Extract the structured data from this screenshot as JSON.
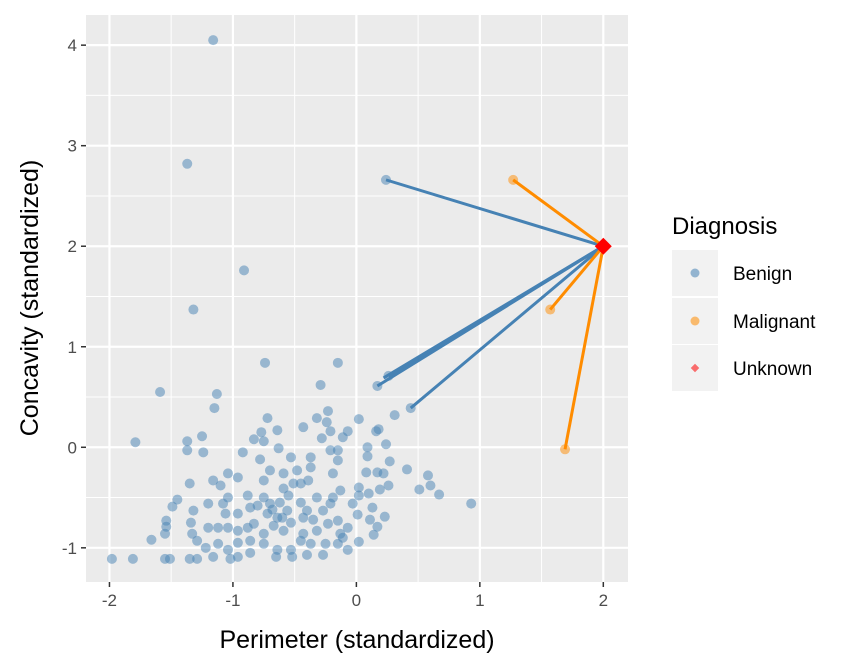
{
  "chart_data": {
    "type": "scatter",
    "xlabel": "Perimeter (standardized)",
    "ylabel": "Concavity (standardized)",
    "xlim": [
      -2.19,
      2.2
    ],
    "ylim": [
      -1.34,
      4.3
    ],
    "xticks": [
      -2,
      -1,
      0,
      1,
      2
    ],
    "xtick_labels": [
      "-2",
      "-1",
      "0",
      "1",
      "2"
    ],
    "yticks": [
      -1,
      0,
      1,
      2,
      3,
      4
    ],
    "ytick_labels": [
      "-1",
      "0",
      "1",
      "2",
      "3",
      "4"
    ],
    "grid": true,
    "legend": {
      "title": "Diagnosis",
      "placement": "right",
      "entries": [
        "Benign",
        "Malignant",
        "Unknown"
      ]
    },
    "colors": {
      "Benign": "#4682B4",
      "Malignant": "#FF8C00",
      "Unknown": "#FF0000",
      "panel": "#EBEBEB"
    },
    "series": [
      {
        "name": "Benign",
        "points": [
          [
            -1.98,
            -1.11
          ],
          [
            -1.81,
            -1.11
          ],
          [
            -1.55,
            -1.11
          ],
          [
            -1.51,
            -1.11
          ],
          [
            -1.35,
            -1.11
          ],
          [
            -1.29,
            -1.11
          ],
          [
            -1.16,
            -1.09
          ],
          [
            -1.02,
            -1.11
          ],
          [
            -0.96,
            -1.09
          ],
          [
            -0.86,
            -1.05
          ],
          [
            -0.65,
            -1.09
          ],
          [
            -0.52,
            -1.09
          ],
          [
            -0.4,
            -1.07
          ],
          [
            -0.27,
            -1.07
          ],
          [
            -1.66,
            -0.92
          ],
          [
            -1.55,
            -0.86
          ],
          [
            -1.54,
            -0.79
          ],
          [
            -1.54,
            -0.73
          ],
          [
            -1.49,
            -0.59
          ],
          [
            -1.45,
            -0.52
          ],
          [
            -1.35,
            -0.36
          ],
          [
            -1.37,
            -0.03
          ],
          [
            -1.37,
            0.06
          ],
          [
            -1.25,
            0.11
          ],
          [
            -1.24,
            -0.05
          ],
          [
            -0.92,
            -0.05
          ],
          [
            -0.83,
            0.08
          ],
          [
            -0.77,
            0.15
          ],
          [
            -0.72,
            0.29
          ],
          [
            -0.64,
            0.17
          ],
          [
            -0.75,
            0.06
          ],
          [
            -0.63,
            -0.01
          ],
          [
            -0.78,
            -0.12
          ],
          [
            -0.53,
            -0.1
          ],
          [
            -0.43,
            0.2
          ],
          [
            -0.32,
            0.29
          ],
          [
            -0.23,
            0.36
          ],
          [
            -0.24,
            0.25
          ],
          [
            -0.21,
            0.16
          ],
          [
            -0.28,
            0.09
          ],
          [
            -0.11,
            0.1
          ],
          [
            -0.07,
            0.16
          ],
          [
            0.02,
            0.28
          ],
          [
            0.16,
            0.16
          ],
          [
            0.18,
            0.18
          ],
          [
            0.31,
            0.32
          ],
          [
            0.24,
            0.03
          ],
          [
            0.09,
            0.0
          ],
          [
            0.09,
            -0.09
          ],
          [
            0.27,
            -0.14
          ],
          [
            0.41,
            -0.22
          ],
          [
            0.58,
            -0.28
          ],
          [
            0.6,
            -0.38
          ],
          [
            0.51,
            -0.42
          ],
          [
            0.67,
            -0.47
          ],
          [
            0.93,
            -0.56
          ],
          [
            0.17,
            -0.25
          ],
          [
            0.22,
            -0.26
          ],
          [
            0.08,
            -0.25
          ],
          [
            0.26,
            -0.38
          ],
          [
            0.19,
            -0.42
          ],
          [
            0.02,
            -0.4
          ],
          [
            0.02,
            -0.48
          ],
          [
            0.1,
            -0.46
          ],
          [
            0.13,
            -0.6
          ],
          [
            0.23,
            -0.69
          ],
          [
            0.17,
            -0.79
          ],
          [
            0.14,
            -0.87
          ],
          [
            0.02,
            -0.94
          ],
          [
            0.11,
            -0.72
          ],
          [
            0.01,
            -0.67
          ],
          [
            -0.03,
            -0.56
          ],
          [
            -0.07,
            -0.8
          ],
          [
            -0.07,
            -1.02
          ],
          [
            -0.15,
            -0.96
          ],
          [
            -0.25,
            -0.96
          ],
          [
            -0.37,
            -0.96
          ],
          [
            -0.45,
            -0.93
          ],
          [
            -0.53,
            -1.02
          ],
          [
            -0.64,
            -1.02
          ],
          [
            -0.75,
            -0.96
          ],
          [
            -0.86,
            -0.93
          ],
          [
            -0.96,
            -0.95
          ],
          [
            -1.04,
            -1.02
          ],
          [
            -1.12,
            -0.96
          ],
          [
            -1.22,
            -1.0
          ],
          [
            -1.29,
            -0.93
          ],
          [
            -1.33,
            -0.86
          ],
          [
            -1.34,
            -0.75
          ],
          [
            -1.32,
            -0.63
          ],
          [
            -1.2,
            -0.56
          ],
          [
            -1.08,
            -0.56
          ],
          [
            -1.04,
            -0.5
          ],
          [
            -1.06,
            -0.66
          ],
          [
            -0.96,
            -0.66
          ],
          [
            -0.88,
            -0.48
          ],
          [
            -0.86,
            -0.6
          ],
          [
            -0.83,
            -0.76
          ],
          [
            -0.88,
            -0.8
          ],
          [
            -0.96,
            -0.83
          ],
          [
            -1.04,
            -0.8
          ],
          [
            -1.12,
            -0.8
          ],
          [
            -1.2,
            -0.8
          ],
          [
            -0.75,
            -0.86
          ],
          [
            -0.67,
            -0.78
          ],
          [
            -0.59,
            -0.83
          ],
          [
            -0.53,
            -0.75
          ],
          [
            -0.72,
            -0.66
          ],
          [
            -0.64,
            -0.7
          ],
          [
            -0.56,
            -0.63
          ],
          [
            -0.7,
            -0.56
          ],
          [
            -0.75,
            -0.5
          ],
          [
            -0.59,
            -0.41
          ],
          [
            -0.51,
            -0.36
          ],
          [
            -0.45,
            -0.36
          ],
          [
            -0.39,
            -0.33
          ],
          [
            -0.37,
            -0.2
          ],
          [
            -0.48,
            -0.23
          ],
          [
            -0.59,
            -0.26
          ],
          [
            -0.7,
            -0.23
          ],
          [
            -0.75,
            -0.33
          ],
          [
            -1.16,
            -0.33
          ],
          [
            -1.1,
            -0.38
          ],
          [
            -1.04,
            -0.26
          ],
          [
            -0.96,
            -0.3
          ],
          [
            -0.4,
            -0.63
          ],
          [
            -0.32,
            -0.5
          ],
          [
            -0.27,
            -0.63
          ],
          [
            -0.21,
            -0.56
          ],
          [
            -0.19,
            -0.5
          ],
          [
            -0.13,
            -0.43
          ],
          [
            -0.19,
            -0.26
          ],
          [
            -0.15,
            -0.13
          ],
          [
            -0.21,
            -0.03
          ],
          [
            -0.15,
            -0.03
          ],
          [
            -0.43,
            -0.7
          ],
          [
            -0.43,
            -0.86
          ],
          [
            -0.32,
            -0.83
          ],
          [
            -0.23,
            -0.76
          ],
          [
            -0.15,
            -0.73
          ],
          [
            -0.13,
            -0.86
          ],
          [
            -0.11,
            -0.9
          ],
          [
            -0.37,
            -0.1
          ],
          [
            -0.62,
            -0.55
          ],
          [
            -0.55,
            -0.48
          ],
          [
            -0.68,
            -0.62
          ],
          [
            -0.8,
            -0.58
          ],
          [
            -0.6,
            -0.7
          ],
          [
            -0.45,
            -0.55
          ],
          [
            -0.35,
            -0.72
          ],
          [
            -1.16,
            4.05
          ],
          [
            -1.37,
            2.82
          ],
          [
            -0.91,
            1.76
          ],
          [
            -1.32,
            1.37
          ],
          [
            -0.74,
            0.84
          ],
          [
            -0.15,
            0.84
          ],
          [
            -0.29,
            0.62
          ],
          [
            -1.59,
            0.55
          ],
          [
            -1.13,
            0.53
          ],
          [
            -1.15,
            0.39
          ],
          [
            -1.79,
            0.05
          ],
          [
            0.24,
            2.66
          ],
          [
            0.17,
            0.61
          ],
          [
            0.26,
            0.71
          ],
          [
            0.44,
            0.39
          ]
        ]
      },
      {
        "name": "Malignant",
        "points": [
          [
            1.27,
            2.66
          ],
          [
            1.57,
            1.37
          ],
          [
            1.69,
            -0.02
          ]
        ]
      },
      {
        "name": "Unknown",
        "points": [
          [
            2.0,
            2.0
          ]
        ]
      }
    ],
    "neighbor_lines": {
      "from": [
        2.0,
        2.0
      ],
      "benign_targets": [
        [
          0.24,
          2.66
        ],
        [
          0.17,
          0.61
        ],
        [
          0.26,
          0.71
        ],
        [
          0.22,
          0.69
        ],
        [
          0.44,
          0.39
        ]
      ],
      "malignant_targets": [
        [
          1.27,
          2.66
        ],
        [
          1.57,
          1.37
        ],
        [
          1.69,
          -0.02
        ]
      ]
    }
  }
}
